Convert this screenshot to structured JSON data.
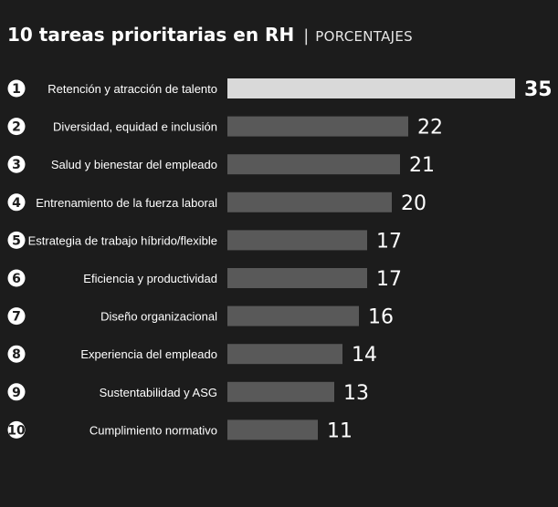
{
  "header": {
    "title": "10 tareas prioritarias en RH",
    "separator": "|",
    "subtitle": "PORCENTAJES"
  },
  "chart_data": {
    "type": "bar",
    "orientation": "horizontal",
    "title": "10 tareas prioritarias en RH",
    "subtitle": "PORCENTAJES",
    "ranks": [
      "1",
      "2",
      "3",
      "4",
      "5",
      "6",
      "7",
      "8",
      "9",
      "10"
    ],
    "categories": [
      "Retención y atracción de talento",
      "Diversidad, equidad e inclusión",
      "Salud y bienestar del empleado",
      "Entrenamiento de la fuerza laboral",
      "Estrategia de trabajo híbrido/flexible",
      "Eficiencia y productividad",
      "Diseño organizacional",
      "Experiencia del empleado",
      "Sustentabilidad y ASG",
      "Cumplimiento normativo"
    ],
    "values": [
      35,
      22,
      21,
      20,
      17,
      17,
      16,
      14,
      13,
      11
    ],
    "xlim": [
      0,
      35
    ],
    "grid": false,
    "legend": "none",
    "colors": {
      "highlight_bar": "#d9d9d9",
      "bar": "#595959",
      "background": "#1c1c1c",
      "text": "#ffffff",
      "badge": "#ffffff"
    }
  }
}
